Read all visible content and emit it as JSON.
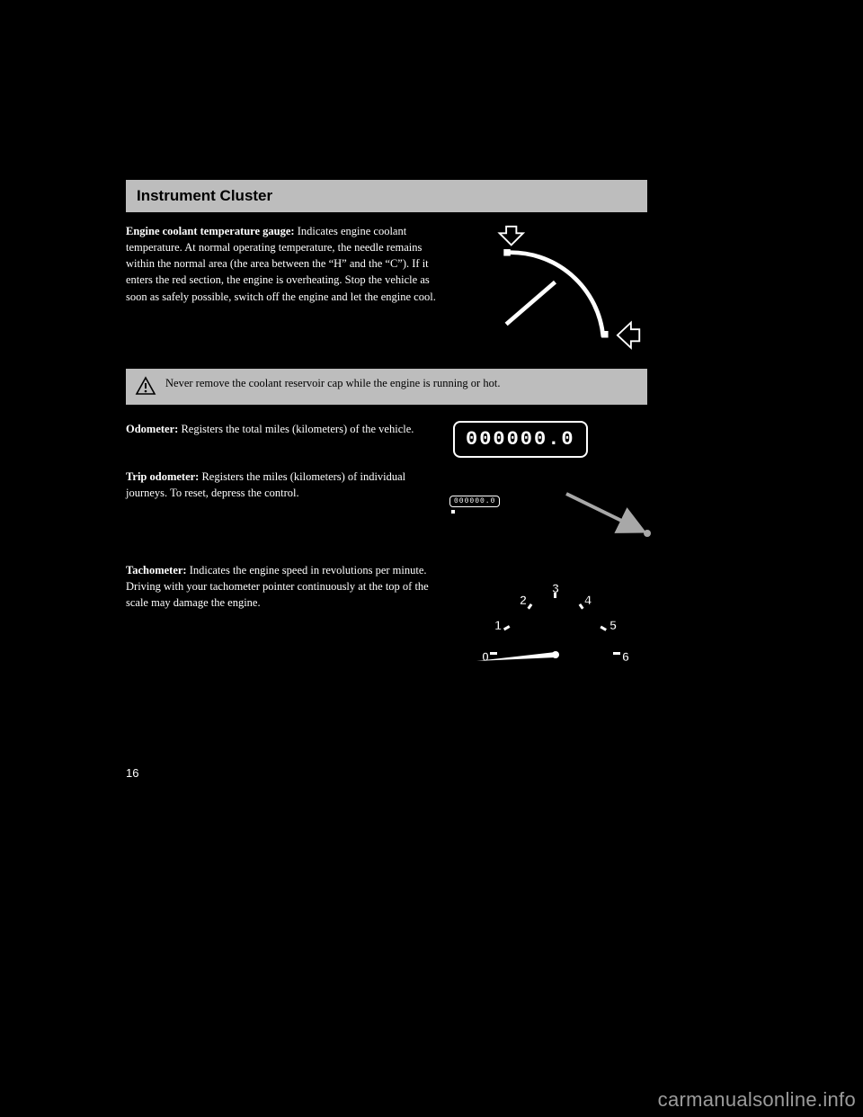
{
  "header": {
    "title": "Instrument Cluster"
  },
  "sections": {
    "coolant": {
      "text_html": "<b>Engine coolant temperature gauge:</b> Indicates engine coolant temperature. At normal operating temperature, the needle remains within the normal area (the area between the “H” and the “C”). If it enters the red section, the engine is overheating. Stop the vehicle as soon as safely possible, switch off the engine and let the engine cool.",
      "figure": {
        "type": "gauge",
        "stroke_color": "#ffffff",
        "stroke_width": 4,
        "marker_color": "#ffffff"
      }
    },
    "warning": {
      "text": "Never remove the coolant reservoir cap while the engine is running or hot."
    },
    "odometer": {
      "text_html": "<b>Odometer:</b> Registers the total miles (kilometers) of the vehicle.",
      "digits": "000000.0",
      "digit_color": "#ffffff",
      "border_color": "#ffffff"
    },
    "trip": {
      "text_html": "<b>Trip odometer:</b> Registers the miles (kilometers) of individual journeys. To reset, depress the control.",
      "tiny_digits": "000000.0",
      "arrow_color": "#a8a8a8",
      "dot_color": "#a8a8a8"
    },
    "tach": {
      "text_html": "<b>Tachometer:</b> Indicates the engine speed in revolutions per minute. Driving with your tachometer pointer continuously at the top of the scale may damage the engine.",
      "labels": [
        "0",
        "1",
        "2",
        "3",
        "4",
        "5",
        "6"
      ],
      "label_color": "#ffffff",
      "needle_color": "#ffffff"
    }
  },
  "page_number": "16",
  "watermark": "carmanualsonline.info"
}
